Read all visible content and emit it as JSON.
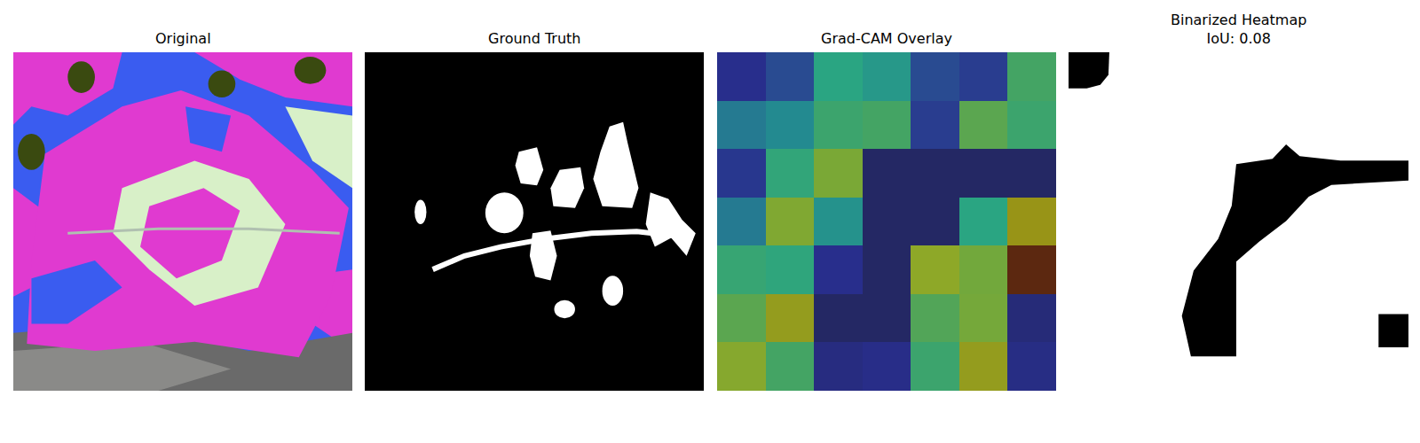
{
  "chart_data": [
    {
      "type": "image",
      "title": "Original"
    },
    {
      "type": "image",
      "title": "Ground Truth"
    },
    {
      "type": "heatmap",
      "title": "Grad-CAM Overlay",
      "xlim": [
        -0.5,
        6.5
      ],
      "ylim": [
        6.5,
        -0.5
      ],
      "tick_labels": false,
      "color_range": [
        0,
        1
      ],
      "cells": [
        [
          0.15,
          0.25,
          0.55,
          0.5,
          0.25,
          0.2,
          0.65
        ],
        [
          0.4,
          0.45,
          0.62,
          0.65,
          0.2,
          0.7,
          0.62
        ],
        [
          0.18,
          0.58,
          0.78,
          0.05,
          0.05,
          0.05,
          0.05
        ],
        [
          0.4,
          0.8,
          0.48,
          0.05,
          0.05,
          0.55,
          0.9
        ],
        [
          0.6,
          0.57,
          0.15,
          0.05,
          0.85,
          0.75,
          1.0
        ],
        [
          0.7,
          0.88,
          0.05,
          0.05,
          0.68,
          0.76,
          0.1
        ],
        [
          0.82,
          0.65,
          0.12,
          0.14,
          0.62,
          0.88,
          0.13
        ]
      ]
    },
    {
      "type": "image",
      "title": "Binarized Heatmap\nIoU: 0.08"
    }
  ]
}
